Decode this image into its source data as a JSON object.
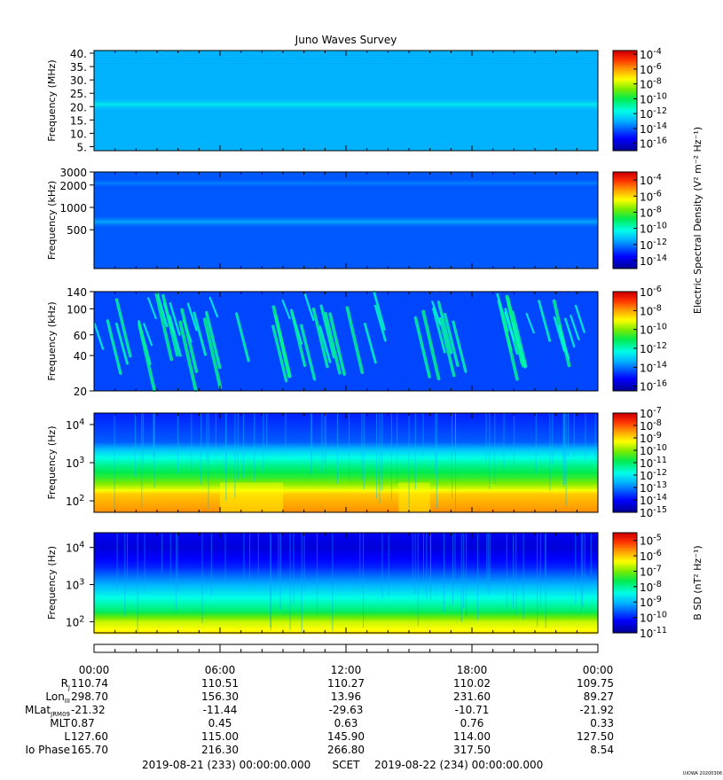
{
  "title": "Juno Waves Survey",
  "credit": "UIOWA 20200306",
  "chart_data": [
    {
      "type": "heatmap",
      "ylabel": "Frequency (MHz)",
      "yscale": "linear",
      "ylim": [
        3.5,
        41
      ],
      "yticks": [
        "40.",
        "35.",
        "30.",
        "25.",
        "20.",
        "15.",
        "10.",
        "5."
      ],
      "colorbar": {
        "label": "",
        "scale": "log",
        "ticks": [
          "-4",
          "-6",
          "-8",
          "-10",
          "-12",
          "-14",
          "-16"
        ],
        "range_exp": [
          -17,
          -3.5
        ]
      },
      "features": [
        {
          "y": 21,
          "level_exp": -12
        }
      ],
      "background_level_exp": -13
    },
    {
      "type": "heatmap",
      "ylabel": "Frequency (kHz)",
      "yscale": "log",
      "ylim": [
        150,
        3000
      ],
      "yticks": [
        "3000",
        "2000",
        "1000",
        "500"
      ],
      "colorbar": {
        "label": "Electric Spectral Density (V² m⁻² Hz⁻¹)",
        "scale": "log",
        "ticks": [
          "-4",
          "-6",
          "-8",
          "-10",
          "-12",
          "-14"
        ],
        "range_exp": [
          -15,
          -3
        ]
      },
      "features": [
        {
          "y": 2150,
          "level_exp": -12
        },
        {
          "y": 650,
          "level_exp": -11.5
        }
      ],
      "background_level_exp": -12.5
    },
    {
      "type": "heatmap",
      "ylabel": "Frequency (kHz)",
      "yscale": "log",
      "ylim": [
        20,
        140
      ],
      "yticks": [
        "140",
        "100",
        "60",
        "40",
        "20"
      ],
      "colorbar": {
        "label": "",
        "scale": "log",
        "ticks": [
          "-6",
          "-8",
          "-10",
          "-12",
          "-14",
          "-16"
        ],
        "range_exp": [
          -16.5,
          -6
        ]
      },
      "background_level_exp": -14.5,
      "activity_hours": [
        [
          0.0,
          6.8
        ],
        [
          8.5,
          13.6
        ],
        [
          15.0,
          17.5
        ],
        [
          19.0,
          24.0
        ]
      ]
    },
    {
      "type": "heatmap",
      "ylabel": "Frequency (Hz)",
      "yscale": "log",
      "ylim": [
        50,
        20000
      ],
      "yticks": [
        "10^4",
        "10^3",
        "10^2"
      ],
      "colorbar": {
        "label": "",
        "scale": "log",
        "ticks": [
          "-7",
          "-8",
          "-9",
          "-10",
          "-11",
          "-12",
          "-13",
          "-14",
          "-15"
        ],
        "range_exp": [
          -15,
          -7
        ]
      },
      "profile": [
        {
          "f": 50,
          "level_exp": -8.3
        },
        {
          "f": 150,
          "level_exp": -8.8
        },
        {
          "f": 220,
          "level_exp": -9.6
        },
        {
          "f": 400,
          "level_exp": -10.5
        },
        {
          "f": 900,
          "level_exp": -11.3
        },
        {
          "f": 2000,
          "level_exp": -12.3
        },
        {
          "f": 3500,
          "level_exp": -13.3
        },
        {
          "f": 20000,
          "level_exp": -13.8
        }
      ],
      "weaker_hours": [
        [
          6.0,
          9.0
        ],
        [
          14.5,
          16.0
        ]
      ]
    },
    {
      "type": "heatmap",
      "ylabel": "Frequency (Hz)",
      "yscale": "log",
      "ylim": [
        50,
        25000
      ],
      "yticks": [
        "10^4",
        "10^3",
        "10^2"
      ],
      "colorbar": {
        "label": "B SD (nT² Hz⁻¹)",
        "scale": "log",
        "ticks": [
          "-5",
          "-6",
          "-7",
          "-8",
          "-9",
          "-10",
          "-11"
        ],
        "range_exp": [
          -11,
          -4.5
        ]
      },
      "profile": [
        {
          "f": 50,
          "level_exp": -6.2
        },
        {
          "f": 100,
          "level_exp": -6.6
        },
        {
          "f": 200,
          "level_exp": -7.8
        },
        {
          "f": 500,
          "level_exp": -8.5
        },
        {
          "f": 1500,
          "level_exp": -9.4
        },
        {
          "f": 3000,
          "level_exp": -10.0
        },
        {
          "f": 10000,
          "level_exp": -10.5
        },
        {
          "f": 25000,
          "level_exp": -10.3
        }
      ]
    }
  ],
  "time_axis": {
    "hours": [
      0,
      6,
      12,
      18,
      24
    ],
    "labels": [
      "00:00",
      "06:00",
      "12:00",
      "18:00",
      "00:00"
    ]
  },
  "ephemeris": [
    {
      "label": "R",
      "sub": "J",
      "values": [
        "110.74",
        "110.51",
        "110.27",
        "110.02",
        "109.75"
      ]
    },
    {
      "label": "Lon",
      "sub": "III",
      "values": [
        "298.70",
        "156.30",
        "13.96",
        "231.60",
        "89.27"
      ]
    },
    {
      "label": "MLat",
      "sub": "JRM09",
      "values": [
        "-21.32",
        "-11.44",
        "-29.63",
        "-10.71",
        "-21.92"
      ]
    },
    {
      "label": "MLT",
      "sub": "",
      "values": [
        "0.87",
        "0.45",
        "0.63",
        "0.76",
        "0.33"
      ]
    },
    {
      "label": "L",
      "sub": "",
      "values": [
        "127.60",
        "115.00",
        "145.90",
        "114.00",
        "127.50"
      ]
    },
    {
      "label": "Io Phase",
      "sub": "",
      "values": [
        "165.70",
        "216.30",
        "266.80",
        "317.50",
        "8.54"
      ]
    }
  ],
  "footer": {
    "start": "2019-08-21 (233) 00:00:00.000",
    "scet": "SCET",
    "end": "2019-08-22 (234) 00:00:00.000"
  }
}
